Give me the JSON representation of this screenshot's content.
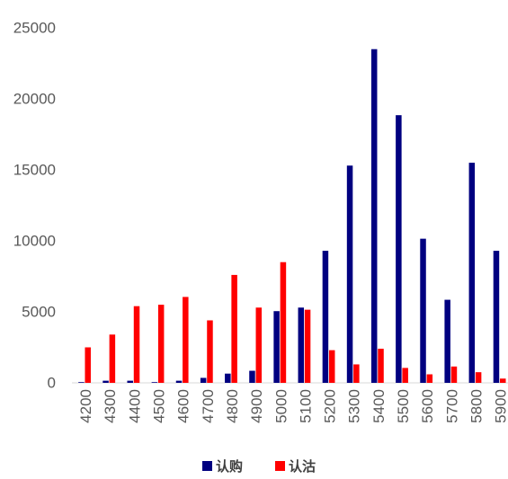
{
  "chart_data": {
    "type": "bar",
    "categories": [
      "4200",
      "4300",
      "4400",
      "4500",
      "4600",
      "4700",
      "4800",
      "4900",
      "5000",
      "5100",
      "5200",
      "5300",
      "5400",
      "5500",
      "5600",
      "5700",
      "5800",
      "5900"
    ],
    "series": [
      {
        "name": "认购",
        "color": "#000080",
        "values": [
          50,
          150,
          150,
          50,
          150,
          350,
          650,
          850,
          5050,
          5300,
          9300,
          15300,
          23500,
          18850,
          10150,
          5850,
          15500,
          9300
        ]
      },
      {
        "name": "认沽",
        "color": "#FF0000",
        "values": [
          2500,
          3400,
          5400,
          5500,
          6050,
          4400,
          7600,
          5300,
          8500,
          5150,
          2300,
          1300,
          2400,
          1050,
          600,
          1150,
          750,
          300
        ]
      }
    ],
    "y_ticks": [
      0,
      5000,
      10000,
      15000,
      20000,
      25000
    ],
    "ylim": [
      0,
      25000
    ],
    "grid": false,
    "legend": "bottom-center",
    "axis_color": "#D9D9D9"
  }
}
